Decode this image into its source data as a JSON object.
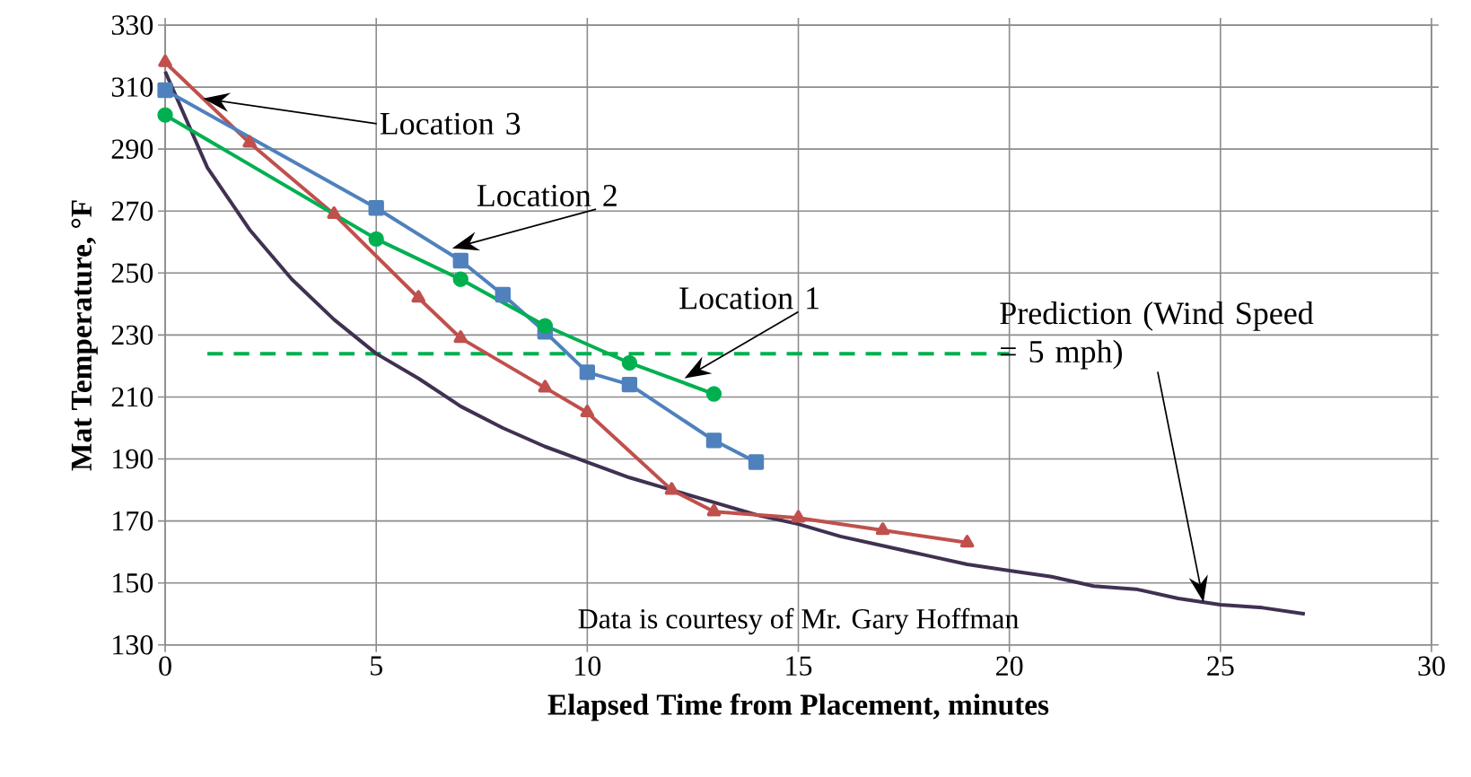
{
  "chart_data": {
    "type": "line",
    "xlabel": "Elapsed Time from Placement, minutes",
    "ylabel": "Mat Temperature, °F",
    "xlim": [
      0,
      30
    ],
    "xticks": [
      0,
      5,
      10,
      15,
      20,
      25,
      30
    ],
    "ylim": [
      130,
      330
    ],
    "yticks": [
      130,
      150,
      170,
      190,
      210,
      230,
      250,
      270,
      290,
      310,
      330
    ],
    "grid": true,
    "line_style": "solid",
    "series": [
      {
        "color": "#00b050",
        "marker": "circle",
        "x": [
          0,
          5,
          7,
          9,
          11,
          13
        ],
        "values": [
          301,
          261,
          248,
          233,
          221,
          211
        ]
      },
      {
        "color": "#4f81bd",
        "marker": "square",
        "x": [
          0,
          5,
          7,
          8,
          9,
          10,
          11,
          13,
          14
        ],
        "values": [
          309,
          271,
          254,
          243,
          231,
          218,
          214,
          196,
          189
        ]
      },
      {
        "color": "#c0504d",
        "marker": "triangle",
        "x": [
          0,
          2,
          4,
          6,
          7,
          9,
          10,
          12,
          13,
          15,
          17,
          19
        ],
        "values": [
          318,
          292,
          269,
          242,
          229,
          213,
          205,
          180,
          173,
          171,
          167,
          163
        ]
      },
      {
        "color": "#403151",
        "marker": "none",
        "x": [
          0,
          1,
          2,
          3,
          4,
          5,
          6,
          7,
          8,
          9,
          10,
          11,
          12,
          13,
          14,
          15,
          16,
          17,
          18,
          19,
          20,
          21,
          22,
          23,
          24,
          25,
          26,
          27
        ],
        "values": [
          315,
          284,
          264,
          248,
          235,
          224,
          216,
          207,
          200,
          194,
          189,
          184,
          180,
          176,
          172,
          169,
          165,
          162,
          159,
          156,
          154,
          152,
          149,
          148,
          145,
          143,
          142,
          140
        ]
      },
      {
        "color": "#00b050",
        "marker": "none",
        "line_style": "dashed",
        "x": [
          1,
          20
        ],
        "values": [
          224,
          224
        ]
      }
    ],
    "annotations": [
      "Location 3",
      {
        "text": "Location 2",
        "x": 6.8,
        "y": 258
      },
      {
        "text": "Location 1",
        "x": 12.3,
        "y": 216
      },
      "Prediction (Wind Speed = 5 mph)",
      "Data is courtesy of Mr. Gary Hoffman"
    ]
  }
}
